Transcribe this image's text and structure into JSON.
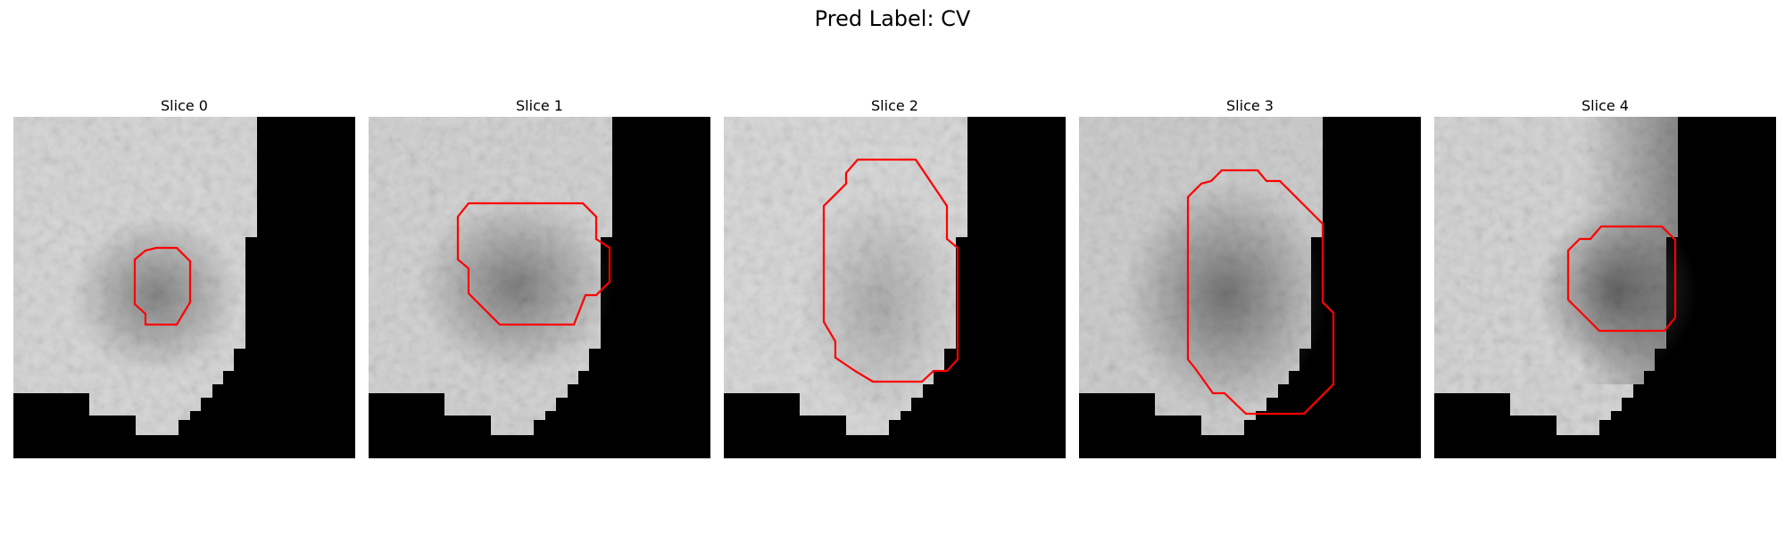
{
  "figure": {
    "title": "Pred Label: CV"
  },
  "colors": {
    "contour": "#ff0000",
    "background": "#ffffff",
    "mask": "#000000"
  },
  "panels": [
    {
      "label": "Slice 0"
    },
    {
      "label": "Slice 1"
    },
    {
      "label": "Slice 2"
    },
    {
      "label": "Slice 3"
    },
    {
      "label": "Slice 4"
    }
  ]
}
